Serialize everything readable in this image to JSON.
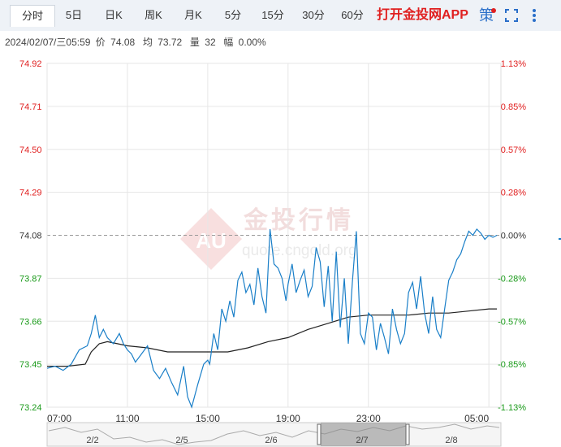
{
  "tabs": [
    {
      "label": "分时",
      "active": true
    },
    {
      "label": "5日"
    },
    {
      "label": "日K"
    },
    {
      "label": "周K"
    },
    {
      "label": "月K"
    },
    {
      "label": "5分"
    },
    {
      "label": "15分"
    },
    {
      "label": "30分"
    },
    {
      "label": "60分"
    }
  ],
  "promo_label": "打开金投网APP",
  "strategy_label": "策",
  "icons": {
    "fullscreen": "fullscreen-icon",
    "more": "more-vertical-icon"
  },
  "info": {
    "datetime": "2024/02/07/三05:59",
    "price_label": "价",
    "price": "74.08",
    "avg_label": "均",
    "avg": "73.72",
    "volume_label": "量",
    "volume": "32",
    "change_label": "幅",
    "change": "0.00%"
  },
  "watermark": {
    "name": "金投行情",
    "url": "quote.cngold.org",
    "logo_text": "AU"
  },
  "colors": {
    "up": "#e02020",
    "down": "#1a9a1a",
    "price_line": "#1a7fc8",
    "avg_line": "#222222",
    "axis_text": "#333333"
  },
  "chart_data": {
    "type": "line",
    "title": "",
    "prev_close": 74.08,
    "ylim": [
      73.24,
      74.92
    ],
    "y_ticks": [
      "74.92",
      "74.71",
      "74.50",
      "74.29",
      "74.08",
      "73.87",
      "73.66",
      "73.45",
      "73.24"
    ],
    "pct_ticks": [
      "1.13%",
      "0.85%",
      "0.57%",
      "0.28%",
      "0.00%",
      "-0.28%",
      "-0.57%",
      "-0.85%",
      "-1.13%"
    ],
    "x_ticks": [
      "07:00",
      "11:00",
      "15:00",
      "19:00",
      "23:00",
      "05:00"
    ],
    "x_hours": [
      0,
      4,
      8,
      12,
      16,
      22
    ],
    "xlim_hours": [
      0,
      22.6
    ],
    "grid": true,
    "series": [
      {
        "key": "price",
        "x_hours": [
          0,
          0.4,
          0.8,
          1.2,
          1.6,
          2.0,
          2.2,
          2.4,
          2.6,
          2.8,
          3.0,
          3.3,
          3.6,
          3.8,
          4.0,
          4.2,
          4.4,
          4.7,
          5.0,
          5.3,
          5.6,
          5.9,
          6.2,
          6.5,
          6.8,
          7.0,
          7.2,
          7.5,
          7.8,
          8.0,
          8.1,
          8.3,
          8.5,
          8.7,
          8.9,
          9.1,
          9.3,
          9.5,
          9.7,
          9.9,
          10.1,
          10.3,
          10.5,
          10.7,
          10.9,
          11.1,
          11.3,
          11.5,
          11.7,
          11.9,
          12.0,
          12.2,
          12.4,
          12.6,
          12.8,
          13.0,
          13.2,
          13.4,
          13.6,
          13.8,
          14.0,
          14.2,
          14.4,
          14.6,
          14.8,
          15.0,
          15.2,
          15.4,
          15.6,
          15.8,
          16.0,
          16.2,
          16.4,
          16.6,
          16.8,
          17.0,
          17.2,
          17.4,
          17.6,
          17.8,
          18.0,
          18.2,
          18.4,
          18.6,
          18.8,
          19.0,
          19.2,
          19.4,
          19.6,
          19.8,
          20.0,
          20.2,
          20.4,
          20.6,
          20.8,
          21.0,
          21.2,
          21.4,
          21.6,
          21.8,
          22.0,
          22.2,
          22.4
        ],
        "values": [
          73.43,
          73.44,
          73.42,
          73.45,
          73.52,
          73.54,
          73.6,
          73.69,
          73.58,
          73.62,
          73.58,
          73.55,
          73.6,
          73.55,
          73.52,
          73.5,
          73.46,
          73.5,
          73.54,
          73.42,
          73.38,
          73.43,
          73.36,
          73.3,
          73.44,
          73.29,
          73.24,
          73.35,
          73.45,
          73.47,
          73.45,
          73.6,
          73.52,
          73.72,
          73.66,
          73.76,
          73.68,
          73.86,
          73.9,
          73.8,
          73.84,
          73.74,
          73.92,
          73.78,
          73.7,
          74.11,
          73.94,
          73.92,
          73.87,
          73.76,
          73.84,
          73.94,
          73.8,
          73.86,
          73.91,
          73.78,
          73.83,
          74.02,
          73.95,
          73.73,
          73.93,
          73.66,
          74.0,
          73.63,
          73.87,
          73.55,
          73.85,
          74.1,
          73.6,
          73.55,
          73.7,
          73.68,
          73.52,
          73.65,
          73.58,
          73.5,
          73.72,
          73.62,
          73.55,
          73.6,
          73.8,
          73.85,
          73.72,
          73.88,
          73.7,
          73.6,
          73.78,
          73.62,
          73.58,
          73.72,
          73.86,
          73.9,
          73.96,
          73.99,
          74.05,
          74.1,
          74.08,
          74.11,
          74.09,
          74.06,
          74.08,
          74.07,
          74.08
        ]
      },
      {
        "key": "avg",
        "x_hours": [
          0,
          1.0,
          1.9,
          2.2,
          2.6,
          3.0,
          3.5,
          4.0,
          5.0,
          6.0,
          7.0,
          8.0,
          9.0,
          10.0,
          11.0,
          12.0,
          13.0,
          14.0,
          15.0,
          16.0,
          17.0,
          18.0,
          19.0,
          20.0,
          21.0,
          22.0,
          22.4
        ],
        "values": [
          73.44,
          73.44,
          73.45,
          73.51,
          73.55,
          73.56,
          73.55,
          73.54,
          73.53,
          73.51,
          73.51,
          73.51,
          73.51,
          73.53,
          73.56,
          73.58,
          73.62,
          73.65,
          73.68,
          73.69,
          73.69,
          73.69,
          73.7,
          73.7,
          73.71,
          73.72,
          73.72
        ]
      }
    ],
    "navigator": {
      "labels": [
        "2/2",
        "2/5",
        "2/6",
        "2/7",
        "2/8"
      ],
      "selected": "2/7"
    }
  }
}
